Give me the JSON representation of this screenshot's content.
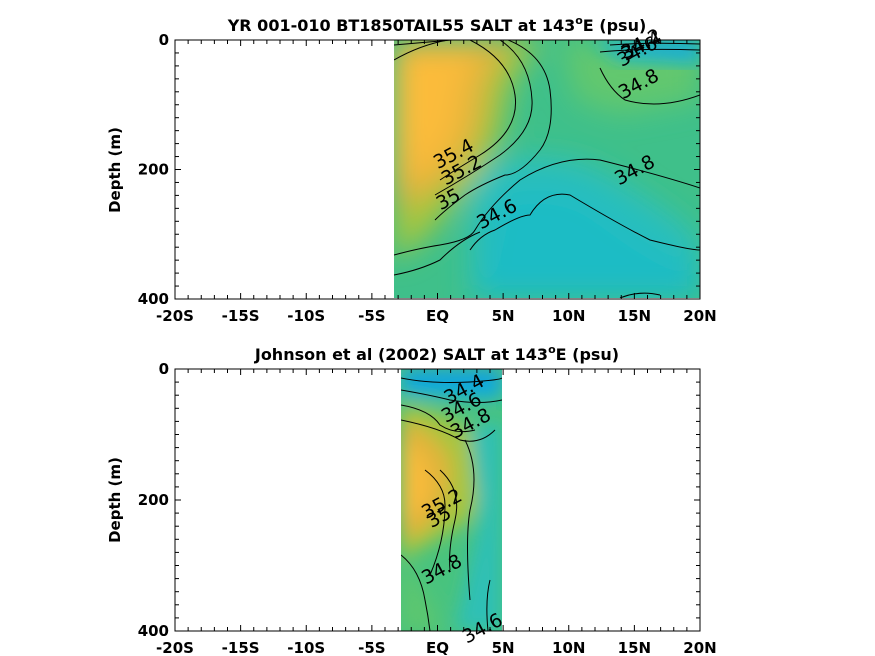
{
  "chart_data": [
    {
      "type": "heatmap",
      "subtype": "filled-contour",
      "title": "YR 001-010 BT1850TAIL55 SALT at 143",
      "title_degree": "o",
      "title_suffix": "E (psu)",
      "ylabel": "Depth (m)",
      "xlabel": "",
      "x_ticks": [
        "-20S",
        "-15S",
        "-10S",
        "-5S",
        "EQ",
        "5N",
        "10N",
        "15N",
        "20N"
      ],
      "x_tick_values": [
        -20,
        -15,
        -10,
        -5,
        0,
        5,
        10,
        15,
        20
      ],
      "y_ticks": [
        "0",
        "200",
        "400"
      ],
      "y_tick_values": [
        0,
        200,
        400
      ],
      "xlim": [
        -20,
        20
      ],
      "ylim": [
        400,
        0
      ],
      "y_reversed": true,
      "data_extent": {
        "lat": [
          -3,
          20
        ],
        "depth": [
          0,
          395
        ]
      },
      "colormap": [
        "#0b9fe2",
        "#1fb8c8",
        "#43c485",
        "#a2c540",
        "#e5b43b",
        "#fbba3a"
      ],
      "contour_labels": [
        {
          "text": "34.2",
          "lat": 15.5,
          "depth": 5
        },
        {
          "text": "34.4",
          "lat": 15.5,
          "depth": 8
        },
        {
          "text": "34.6",
          "lat": 15.2,
          "depth": 17
        },
        {
          "text": "34.8",
          "lat": 15.3,
          "depth": 67
        },
        {
          "text": "35.4",
          "lat": 1.2,
          "depth": 175
        },
        {
          "text": "35.2",
          "lat": 1.8,
          "depth": 200
        },
        {
          "text": "35",
          "lat": 0.8,
          "depth": 245
        },
        {
          "text": "34.6",
          "lat": 4.5,
          "depth": 268
        },
        {
          "text": "34.8",
          "lat": 15,
          "depth": 200
        }
      ]
    },
    {
      "type": "heatmap",
      "subtype": "filled-contour",
      "title": "Johnson et al (2002) SALT at 143",
      "title_degree": "o",
      "title_suffix": "E (psu)",
      "ylabel": "Depth (m)",
      "xlabel": "",
      "x_ticks": [
        "-20S",
        "-15S",
        "-10S",
        "-5S",
        "EQ",
        "5N",
        "10N",
        "15N",
        "20N"
      ],
      "x_tick_values": [
        -20,
        -15,
        -10,
        -5,
        0,
        5,
        10,
        15,
        20
      ],
      "y_ticks": [
        "0",
        "200",
        "400"
      ],
      "y_tick_values": [
        0,
        200,
        400
      ],
      "xlim": [
        -20,
        20
      ],
      "ylim": [
        400,
        0
      ],
      "y_reversed": true,
      "data_extent": {
        "lat": [
          -2.5,
          5
        ],
        "depth": [
          0,
          400
        ]
      },
      "colormap": [
        "#0b9fe2",
        "#1fb8c8",
        "#43c485",
        "#a2c540",
        "#e5b43b",
        "#fbba3a"
      ],
      "contour_labels": [
        {
          "text": "34.4",
          "lat": 2,
          "depth": 30
        },
        {
          "text": "34.6",
          "lat": 1.8,
          "depth": 58
        },
        {
          "text": "34.8",
          "lat": 2.5,
          "depth": 82
        },
        {
          "text": "35.2",
          "lat": 0.3,
          "depth": 205
        },
        {
          "text": "35",
          "lat": 0.1,
          "depth": 225
        },
        {
          "text": "34.8",
          "lat": 0.3,
          "depth": 305
        },
        {
          "text": "34.6",
          "lat": 3.4,
          "depth": 395
        }
      ]
    }
  ]
}
